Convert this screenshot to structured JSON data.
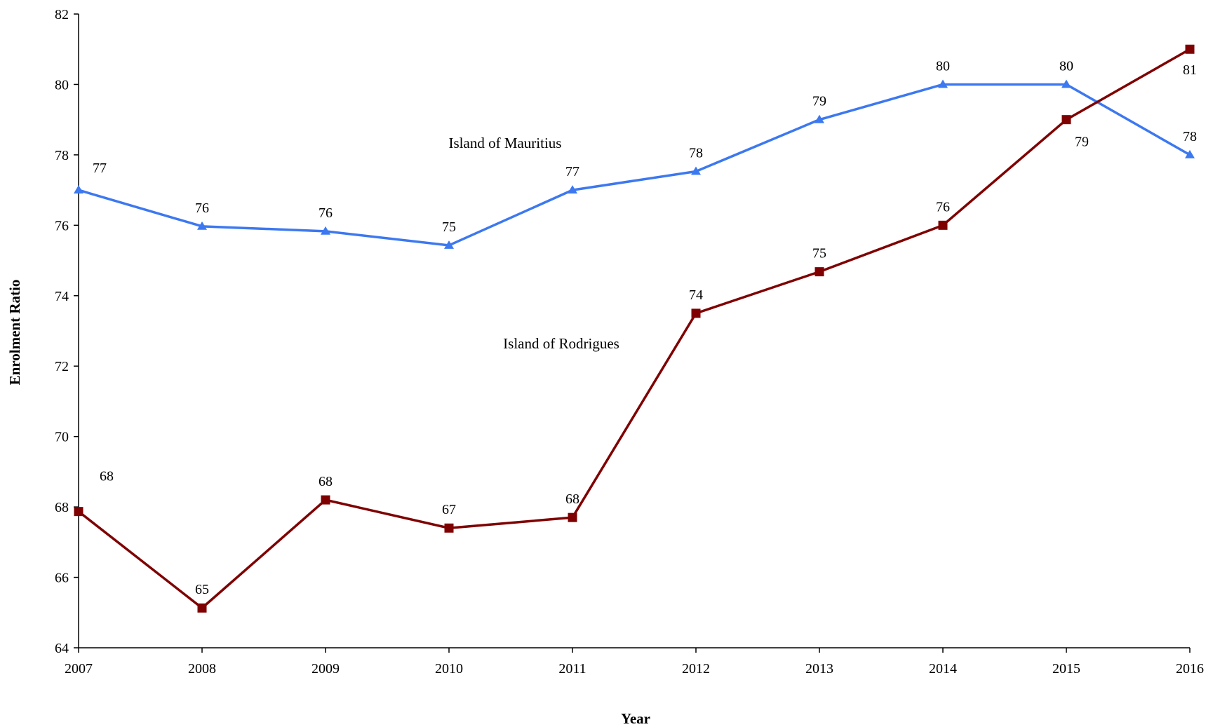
{
  "chart_data": {
    "type": "line",
    "x": [
      "2007",
      "2008",
      "2009",
      "2010",
      "2011",
      "2012",
      "2013",
      "2014",
      "2015",
      "2016"
    ],
    "ylim": [
      64,
      82
    ],
    "yticks": [
      64,
      66,
      68,
      70,
      72,
      74,
      76,
      78,
      80,
      82
    ],
    "xlabel": "Year",
    "ylabel": "Enrolment Ratio",
    "grid": false,
    "legend": "none",
    "series": [
      {
        "name": "Island of Mauritius",
        "color": "#3c78f0",
        "marker": "triangle",
        "values": [
          77.0,
          75.97,
          75.83,
          75.43,
          77.0,
          77.53,
          79.0,
          80.0,
          80.0,
          78.0
        ],
        "labels": [
          "77",
          "76",
          "76",
          "75",
          "77",
          "78",
          "79",
          "80",
          "80",
          "78"
        ]
      },
      {
        "name": "Island of Rodrigues",
        "color": "#7f0000",
        "marker": "square",
        "values": [
          67.87,
          65.13,
          68.2,
          67.4,
          67.7,
          73.5,
          74.68,
          76.0,
          79.0,
          81.0
        ],
        "labels": [
          "68",
          "65",
          "68",
          "67",
          "68",
          "74",
          "75",
          "76",
          "79",
          "81"
        ]
      }
    ]
  }
}
